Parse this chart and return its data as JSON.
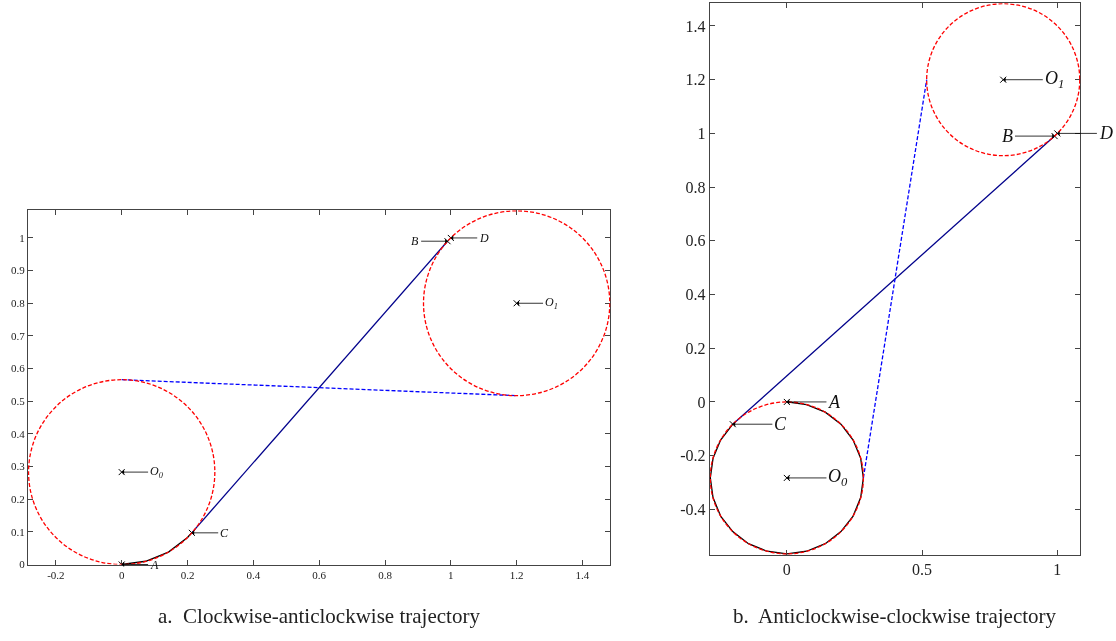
{
  "chart_data": [
    {
      "type": "line",
      "title": "a.  Clockwise-anticlockwise trajectory",
      "xlim": [
        -0.285,
        1.485
      ],
      "ylim": [
        0,
        1.085
      ],
      "xticks": [
        -0.2,
        0,
        0.2,
        0.4,
        0.6,
        0.8,
        1,
        1.2,
        1.4
      ],
      "yticks": [
        0,
        0.1,
        0.2,
        0.3,
        0.4,
        0.5,
        0.6,
        0.7,
        0.8,
        0.9,
        1
      ],
      "series": [
        {
          "color": "#000000",
          "line_style": "solid",
          "x": [
            0,
            0.073,
            0.142,
            0.2,
            0.213
          ],
          "values": [
            0,
            0.01,
            0.038,
            0.083,
            0.097
          ]
        },
        {
          "color": "#00008b",
          "line_style": "solid",
          "x": [
            0.213,
            0.99
          ],
          "values": [
            0.097,
            0.99
          ]
        },
        {
          "color": "#0000ff",
          "line_style": "dashed",
          "x": [
            0,
            1.2
          ],
          "values": [
            0.566,
            0.517
          ]
        },
        {
          "type": "scatter",
          "color": "#000000",
          "marker": "cross",
          "x": [
            0,
            0.213,
            0.99,
            1.0,
            0,
            1.2
          ],
          "values": [
            0,
            0.097,
            0.99,
            1.0,
            0.283,
            0.8
          ]
        }
      ],
      "annotations": [
        {
          "text": "A",
          "x": 0,
          "y": 0
        },
        {
          "text": "C",
          "x": 0.213,
          "y": 0.097
        },
        {
          "text": "B",
          "x": 0.99,
          "y": 0.99
        },
        {
          "text": "D",
          "x": 1.0,
          "y": 1.0
        },
        {
          "text": "O$_{0}$",
          "x": 0,
          "y": 0.283
        },
        {
          "text": "O$_{1}$",
          "x": 1.2,
          "y": 0.8
        }
      ]
    },
    {
      "type": "line",
      "title": "b.  Anticlockwise-clockwise trajectory",
      "xlim": [
        -0.285,
        1.085
      ],
      "ylim": [
        -0.57,
        1.485
      ],
      "xticks": [
        0,
        0.5,
        1
      ],
      "yticks": [
        -0.4,
        -0.2,
        0,
        0.2,
        0.4,
        0.6,
        0.8,
        1,
        1.2,
        1.4
      ],
      "series": [
        {
          "color": "#000000",
          "line_style": "solid",
          "x": [
            0,
            0.073,
            0.142,
            0.2,
            0.245,
            0.273,
            0.283,
            0.273,
            0.245,
            0.2,
            0.142,
            0.073,
            0,
            -0.073,
            -0.142,
            -0.2,
            -0.245,
            -0.273,
            -0.283,
            -0.273,
            -0.245,
            -0.2
          ],
          "values": [
            0,
            -0.01,
            -0.038,
            -0.083,
            -0.142,
            -0.21,
            -0.283,
            -0.356,
            -0.425,
            -0.483,
            -0.528,
            -0.556,
            -0.566,
            -0.556,
            -0.528,
            -0.483,
            -0.425,
            -0.356,
            -0.283,
            -0.21,
            -0.142,
            -0.083
          ]
        },
        {
          "color": "#00008b",
          "line_style": "solid",
          "x": [
            -0.2,
            0.99
          ],
          "values": [
            -0.083,
            0.99
          ]
        },
        {
          "color": "#0000ff",
          "line_style": "dashed",
          "x": [
            0.283,
            0.517
          ],
          "values": [
            -0.283,
            1.2
          ]
        },
        {
          "type": "scatter",
          "color": "#000000",
          "marker": "cross",
          "x": [
            0,
            -0.2,
            0.99,
            1.0,
            0,
            0.8
          ],
          "values": [
            0,
            -0.083,
            0.99,
            1.0,
            -0.283,
            1.2
          ]
        }
      ],
      "annotations": [
        {
          "text": "A",
          "x": 0,
          "y": 0
        },
        {
          "text": "C",
          "x": -0.2,
          "y": -0.083
        },
        {
          "text": "B",
          "x": 0.99,
          "y": 0.99
        },
        {
          "text": "D",
          "x": 1.0,
          "y": 1.0
        },
        {
          "text": "O$_{0}$",
          "x": 0,
          "y": -0.283
        },
        {
          "text": "O$_{1}$",
          "x": 0.8,
          "y": 1.2
        }
      ]
    }
  ]
}
